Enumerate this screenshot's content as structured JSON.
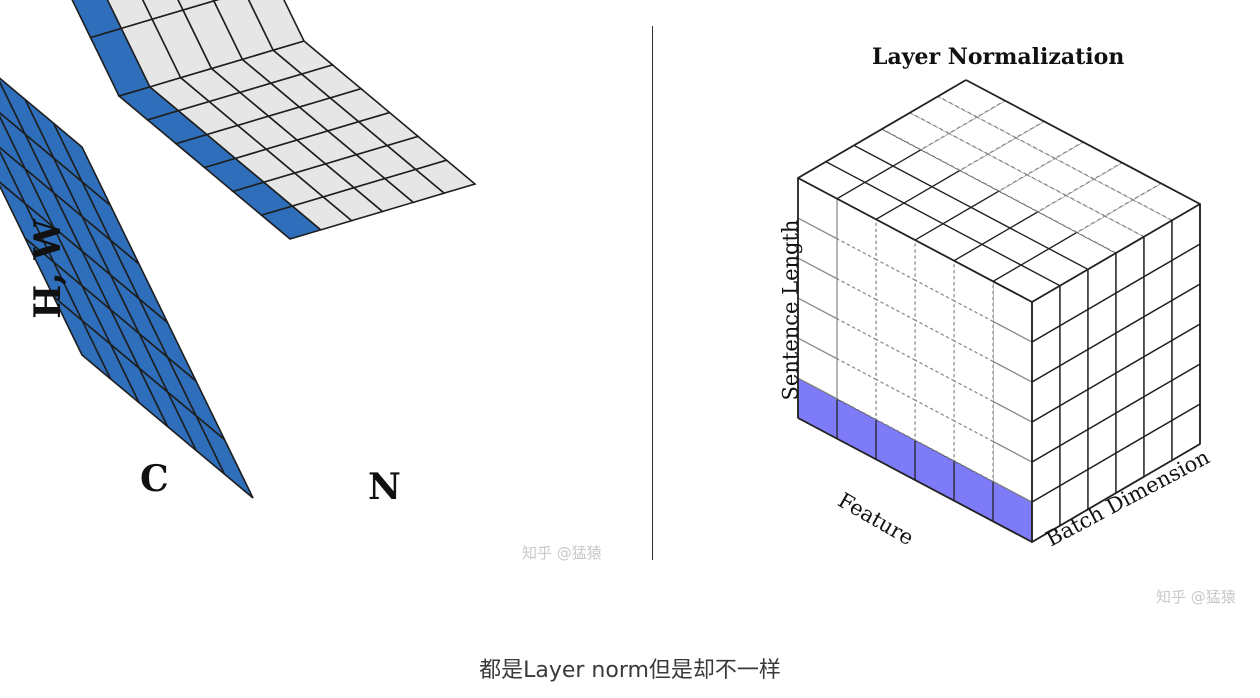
{
  "left": {
    "axis_hw": "H, W",
    "axis_c": "C",
    "axis_n": "N",
    "highlight_color": "#2E6EBA",
    "cell_color": "#E6E6E6",
    "grid": 6
  },
  "right": {
    "title": "Layer Normalization",
    "axis_sentence": "Sentence Length",
    "axis_feature": "Feature",
    "axis_batch": "Batch Dimension",
    "highlight_color": "#7D7BF7",
    "grid": 6
  },
  "watermark": "知乎 @猛猿",
  "caption": "都是Layer norm但是却不一样"
}
